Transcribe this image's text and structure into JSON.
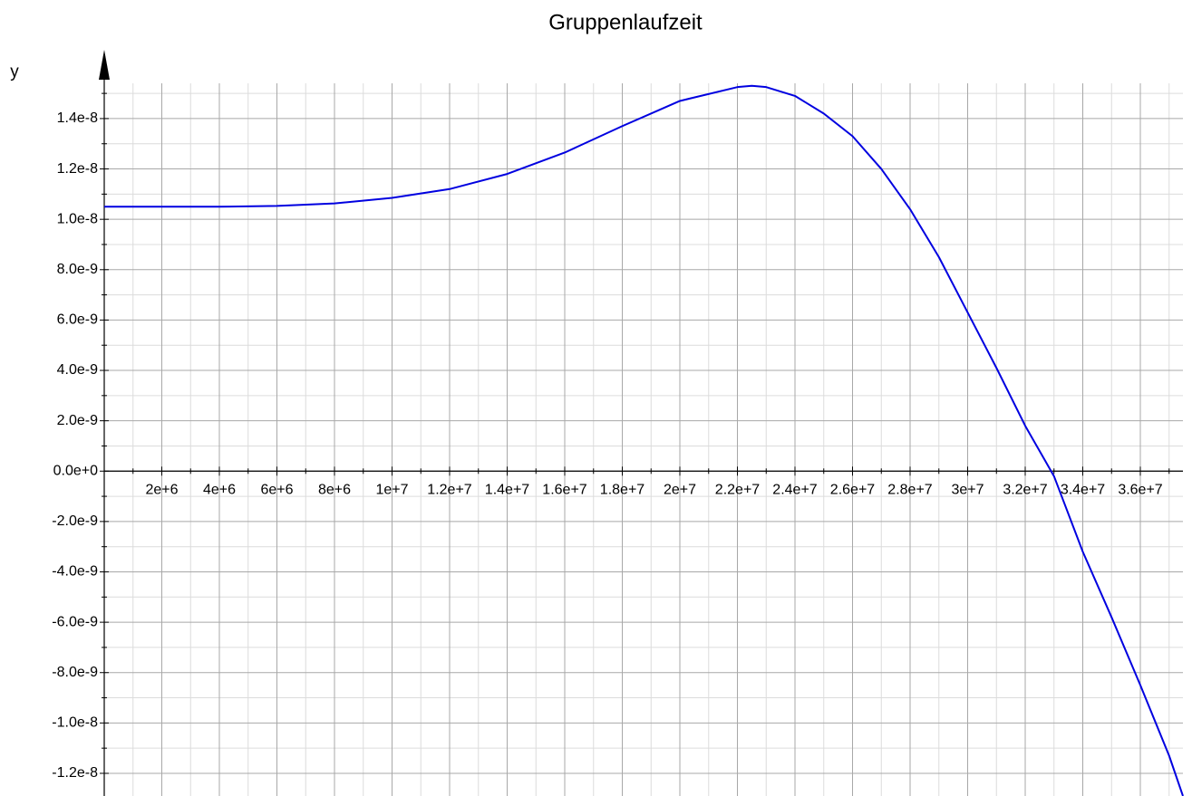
{
  "chart_data": {
    "type": "line",
    "title": "Gruppenlaufzeit",
    "y_label": "y",
    "x": [
      0,
      2000000,
      4000000,
      6000000,
      8000000,
      10000000,
      12000000,
      14000000,
      16000000,
      18000000,
      20000000,
      22000000,
      22500000,
      23000000,
      24000000,
      25000000,
      26000000,
      27000000,
      28000000,
      29000000,
      30000000,
      31000000,
      32000000,
      33000000,
      34000000,
      35000000,
      36000000,
      37000000,
      37480000
    ],
    "series": [
      {
        "color": "#0000e0",
        "values": [
          1.05e-08,
          1.05e-08,
          1.05e-08,
          1.053e-08,
          1.063e-08,
          1.085e-08,
          1.12e-08,
          1.18e-08,
          1.265e-08,
          1.37e-08,
          1.47e-08,
          1.525e-08,
          1.53e-08,
          1.525e-08,
          1.49e-08,
          1.42e-08,
          1.33e-08,
          1.2e-08,
          1.04e-08,
          8.5e-09,
          6.3e-09,
          4.1e-09,
          1.8e-09,
          -2e-10,
          -3.2e-09,
          -5.8e-09,
          -8.5e-09,
          -1.13e-08,
          -1.29e-08
        ]
      }
    ],
    "xlim": [
      0,
      37480000
    ],
    "ylim": [
      -1.29e-08,
      1.54e-08
    ],
    "xticks": [
      {
        "value": 2000000,
        "label": "2e+6"
      },
      {
        "value": 4000000,
        "label": "4e+6"
      },
      {
        "value": 6000000,
        "label": "6e+6"
      },
      {
        "value": 8000000,
        "label": "8e+6"
      },
      {
        "value": 10000000,
        "label": "1e+7"
      },
      {
        "value": 12000000,
        "label": "1.2e+7"
      },
      {
        "value": 14000000,
        "label": "1.4e+7"
      },
      {
        "value": 16000000,
        "label": "1.6e+7"
      },
      {
        "value": 18000000,
        "label": "1.8e+7"
      },
      {
        "value": 20000000,
        "label": "2e+7"
      },
      {
        "value": 22000000,
        "label": "2.2e+7"
      },
      {
        "value": 24000000,
        "label": "2.4e+7"
      },
      {
        "value": 26000000,
        "label": "2.6e+7"
      },
      {
        "value": 28000000,
        "label": "2.8e+7"
      },
      {
        "value": 30000000,
        "label": "3e+7"
      },
      {
        "value": 32000000,
        "label": "3.2e+7"
      },
      {
        "value": 34000000,
        "label": "3.4e+7"
      },
      {
        "value": 36000000,
        "label": "3.6e+7"
      }
    ],
    "yticks": [
      {
        "value": -1.2e-08,
        "label": "-1.2e-8"
      },
      {
        "value": -1e-08,
        "label": "-1.0e-8"
      },
      {
        "value": -8e-09,
        "label": "-8.0e-9"
      },
      {
        "value": -6e-09,
        "label": "-6.0e-9"
      },
      {
        "value": -4e-09,
        "label": "-4.0e-9"
      },
      {
        "value": -2e-09,
        "label": "-2.0e-9"
      },
      {
        "value": 0,
        "label": "0.0e+0"
      },
      {
        "value": 2e-09,
        "label": "2.0e-9"
      },
      {
        "value": 4e-09,
        "label": "4.0e-9"
      },
      {
        "value": 6e-09,
        "label": "6.0e-9"
      },
      {
        "value": 8e-09,
        "label": "8.0e-9"
      },
      {
        "value": 1e-08,
        "label": "1.0e-8"
      },
      {
        "value": 1.2e-08,
        "label": "1.2e-8"
      },
      {
        "value": 1.4e-08,
        "label": "1.4e-8"
      }
    ],
    "minor_xticks": [
      1000000,
      3000000,
      5000000,
      7000000,
      9000000,
      11000000,
      13000000,
      15000000,
      17000000,
      19000000,
      21000000,
      23000000,
      25000000,
      27000000,
      29000000,
      31000000,
      33000000,
      35000000,
      37000000
    ],
    "minor_yticks": [
      -1.3e-08,
      -1.1e-08,
      -9e-09,
      -7e-09,
      -5e-09,
      -3e-09,
      -1e-09,
      1e-09,
      3e-09,
      5e-09,
      7e-09,
      9e-09,
      1.1e-08,
      1.3e-08,
      1.5e-08
    ],
    "grid": true
  }
}
